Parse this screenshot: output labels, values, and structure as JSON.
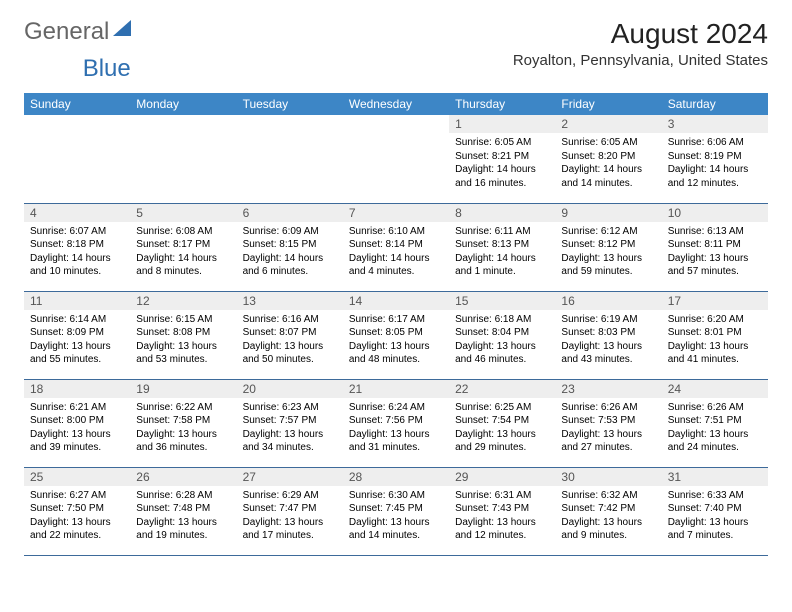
{
  "logo": {
    "text1": "General",
    "text2": "Blue",
    "icon_color": "#2f6fb0"
  },
  "title": "August 2024",
  "location": "Royalton, Pennsylvania, United States",
  "header_bg": "#3d86c6",
  "day_bg": "#eeeeee",
  "columns": [
    "Sunday",
    "Monday",
    "Tuesday",
    "Wednesday",
    "Thursday",
    "Friday",
    "Saturday"
  ],
  "weeks": [
    [
      null,
      null,
      null,
      null,
      {
        "n": "1",
        "sr": "6:05 AM",
        "ss": "8:21 PM",
        "dl": "14 hours and 16 minutes."
      },
      {
        "n": "2",
        "sr": "6:05 AM",
        "ss": "8:20 PM",
        "dl": "14 hours and 14 minutes."
      },
      {
        "n": "3",
        "sr": "6:06 AM",
        "ss": "8:19 PM",
        "dl": "14 hours and 12 minutes."
      }
    ],
    [
      {
        "n": "4",
        "sr": "6:07 AM",
        "ss": "8:18 PM",
        "dl": "14 hours and 10 minutes."
      },
      {
        "n": "5",
        "sr": "6:08 AM",
        "ss": "8:17 PM",
        "dl": "14 hours and 8 minutes."
      },
      {
        "n": "6",
        "sr": "6:09 AM",
        "ss": "8:15 PM",
        "dl": "14 hours and 6 minutes."
      },
      {
        "n": "7",
        "sr": "6:10 AM",
        "ss": "8:14 PM",
        "dl": "14 hours and 4 minutes."
      },
      {
        "n": "8",
        "sr": "6:11 AM",
        "ss": "8:13 PM",
        "dl": "14 hours and 1 minute."
      },
      {
        "n": "9",
        "sr": "6:12 AM",
        "ss": "8:12 PM",
        "dl": "13 hours and 59 minutes."
      },
      {
        "n": "10",
        "sr": "6:13 AM",
        "ss": "8:11 PM",
        "dl": "13 hours and 57 minutes."
      }
    ],
    [
      {
        "n": "11",
        "sr": "6:14 AM",
        "ss": "8:09 PM",
        "dl": "13 hours and 55 minutes."
      },
      {
        "n": "12",
        "sr": "6:15 AM",
        "ss": "8:08 PM",
        "dl": "13 hours and 53 minutes."
      },
      {
        "n": "13",
        "sr": "6:16 AM",
        "ss": "8:07 PM",
        "dl": "13 hours and 50 minutes."
      },
      {
        "n": "14",
        "sr": "6:17 AM",
        "ss": "8:05 PM",
        "dl": "13 hours and 48 minutes."
      },
      {
        "n": "15",
        "sr": "6:18 AM",
        "ss": "8:04 PM",
        "dl": "13 hours and 46 minutes."
      },
      {
        "n": "16",
        "sr": "6:19 AM",
        "ss": "8:03 PM",
        "dl": "13 hours and 43 minutes."
      },
      {
        "n": "17",
        "sr": "6:20 AM",
        "ss": "8:01 PM",
        "dl": "13 hours and 41 minutes."
      }
    ],
    [
      {
        "n": "18",
        "sr": "6:21 AM",
        "ss": "8:00 PM",
        "dl": "13 hours and 39 minutes."
      },
      {
        "n": "19",
        "sr": "6:22 AM",
        "ss": "7:58 PM",
        "dl": "13 hours and 36 minutes."
      },
      {
        "n": "20",
        "sr": "6:23 AM",
        "ss": "7:57 PM",
        "dl": "13 hours and 34 minutes."
      },
      {
        "n": "21",
        "sr": "6:24 AM",
        "ss": "7:56 PM",
        "dl": "13 hours and 31 minutes."
      },
      {
        "n": "22",
        "sr": "6:25 AM",
        "ss": "7:54 PM",
        "dl": "13 hours and 29 minutes."
      },
      {
        "n": "23",
        "sr": "6:26 AM",
        "ss": "7:53 PM",
        "dl": "13 hours and 27 minutes."
      },
      {
        "n": "24",
        "sr": "6:26 AM",
        "ss": "7:51 PM",
        "dl": "13 hours and 24 minutes."
      }
    ],
    [
      {
        "n": "25",
        "sr": "6:27 AM",
        "ss": "7:50 PM",
        "dl": "13 hours and 22 minutes."
      },
      {
        "n": "26",
        "sr": "6:28 AM",
        "ss": "7:48 PM",
        "dl": "13 hours and 19 minutes."
      },
      {
        "n": "27",
        "sr": "6:29 AM",
        "ss": "7:47 PM",
        "dl": "13 hours and 17 minutes."
      },
      {
        "n": "28",
        "sr": "6:30 AM",
        "ss": "7:45 PM",
        "dl": "13 hours and 14 minutes."
      },
      {
        "n": "29",
        "sr": "6:31 AM",
        "ss": "7:43 PM",
        "dl": "13 hours and 12 minutes."
      },
      {
        "n": "30",
        "sr": "6:32 AM",
        "ss": "7:42 PM",
        "dl": "13 hours and 9 minutes."
      },
      {
        "n": "31",
        "sr": "6:33 AM",
        "ss": "7:40 PM",
        "dl": "13 hours and 7 minutes."
      }
    ]
  ],
  "labels": {
    "sunrise": "Sunrise: ",
    "sunset": "Sunset: ",
    "daylight": "Daylight: "
  }
}
